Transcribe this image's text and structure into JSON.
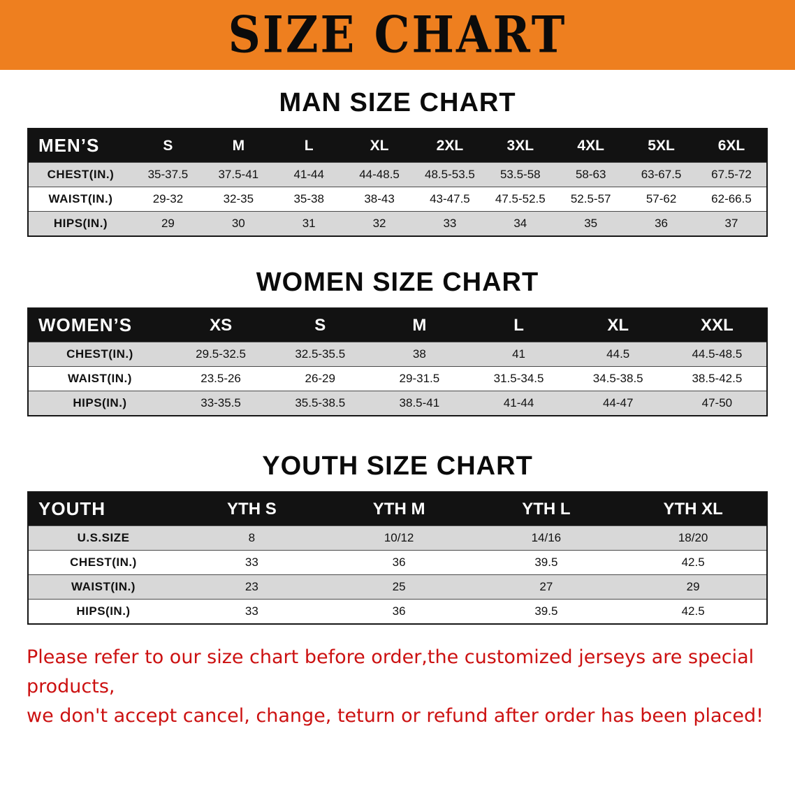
{
  "theme": {
    "orange": "#ee7f1f",
    "black": "#121212",
    "gray_row": "#d8d8d8",
    "red_text": "#cc1111"
  },
  "banner": {
    "title": "SIZE CHART"
  },
  "sections": [
    {
      "id": "men",
      "heading": "MAN SIZE CHART",
      "table": {
        "header_label": "MEN’S",
        "columns": [
          "S",
          "M",
          "L",
          "XL",
          "2XL",
          "3XL",
          "4XL",
          "5XL",
          "6XL"
        ],
        "rows": [
          {
            "label": "CHEST(IN.)",
            "values": [
              "35-37.5",
              "37.5-41",
              "41-44",
              "44-48.5",
              "48.5-53.5",
              "53.5-58",
              "58-63",
              "63-67.5",
              "67.5-72"
            ]
          },
          {
            "label": "WAIST(IN.)",
            "values": [
              "29-32",
              "32-35",
              "35-38",
              "38-43",
              "43-47.5",
              "47.5-52.5",
              "52.5-57",
              "57-62",
              "62-66.5"
            ]
          },
          {
            "label": "HIPS(IN.)",
            "values": [
              "29",
              "30",
              "31",
              "32",
              "33",
              "34",
              "35",
              "36",
              "37"
            ]
          }
        ]
      }
    },
    {
      "id": "women",
      "heading": "WOMEN SIZE CHART",
      "table": {
        "header_label": "WOMEN’S",
        "columns": [
          "XS",
          "S",
          "M",
          "L",
          "XL",
          "XXL"
        ],
        "rows": [
          {
            "label": "CHEST(IN.)",
            "values": [
              "29.5-32.5",
              "32.5-35.5",
              "38",
              "41",
              "44.5",
              "44.5-48.5"
            ]
          },
          {
            "label": "WAIST(IN.)",
            "values": [
              "23.5-26",
              "26-29",
              "29-31.5",
              "31.5-34.5",
              "34.5-38.5",
              "38.5-42.5"
            ]
          },
          {
            "label": "HIPS(IN.)",
            "values": [
              "33-35.5",
              "35.5-38.5",
              "38.5-41",
              "41-44",
              "44-47",
              "47-50"
            ]
          }
        ]
      }
    },
    {
      "id": "youth",
      "heading": "YOUTH SIZE CHART",
      "table": {
        "header_label": "YOUTH",
        "columns": [
          "YTH S",
          "YTH M",
          "YTH L",
          "YTH XL"
        ],
        "rows": [
          {
            "label": "U.S.SIZE",
            "values": [
              "8",
              "10/12",
              "14/16",
              "18/20"
            ]
          },
          {
            "label": "CHEST(IN.)",
            "values": [
              "33",
              "36",
              "39.5",
              "42.5"
            ]
          },
          {
            "label": "WAIST(IN.)",
            "values": [
              "23",
              "25",
              "27",
              "29"
            ]
          },
          {
            "label": "HIPS(IN.)",
            "values": [
              "33",
              "36",
              "39.5",
              "42.5"
            ]
          }
        ]
      }
    }
  ],
  "footer": {
    "line1": "Please refer to our size chart before order,the customized jerseys are special products,",
    "line2": "we don't accept cancel, change, teturn or refund after order has been placed!"
  }
}
